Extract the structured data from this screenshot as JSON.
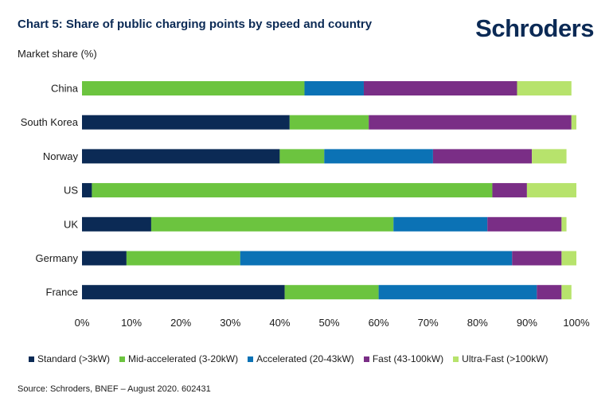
{
  "header": {
    "title": "Chart 5: Share of public charging points by speed and country",
    "logo": "Schroders",
    "ylabel": "Market share (%)"
  },
  "footer": {
    "source": "Source: Schroders, BNEF – August 2020. 602431"
  },
  "colors": {
    "Standard (>3kW)": "#0b2a55",
    "Mid-accelerated (3-20kW)": "#6cc43f",
    "Accelerated (20-43kW)": "#0b72b5",
    "Fast (43-100kW)": "#7a2e86",
    "Ultra-Fast (>100kW)": "#b7e36c"
  },
  "chart_data": {
    "type": "bar",
    "orientation": "horizontal",
    "stacked": true,
    "categories": [
      "China",
      "South Korea",
      "Norway",
      "US",
      "UK",
      "Germany",
      "France"
    ],
    "series": [
      {
        "name": "Standard (>3kW)",
        "values": [
          0,
          42,
          40,
          2,
          14,
          9,
          41
        ]
      },
      {
        "name": "Mid-accelerated (3-20kW)",
        "values": [
          45,
          16,
          9,
          81,
          49,
          23,
          19
        ]
      },
      {
        "name": "Accelerated (20-43kW)",
        "values": [
          12,
          0,
          22,
          0,
          19,
          55,
          32
        ]
      },
      {
        "name": "Fast (43-100kW)",
        "values": [
          31,
          41,
          20,
          7,
          15,
          10,
          5
        ]
      },
      {
        "name": "Ultra-Fast (>100kW)",
        "values": [
          11,
          1,
          7,
          10,
          1,
          3,
          2
        ]
      }
    ],
    "xlim": [
      0,
      100
    ],
    "xticks": [
      "0%",
      "10%",
      "20%",
      "30%",
      "40%",
      "50%",
      "60%",
      "70%",
      "80%",
      "90%",
      "100%"
    ],
    "ylabel": "Market share (%)",
    "legend_position": "bottom",
    "grid": false
  }
}
